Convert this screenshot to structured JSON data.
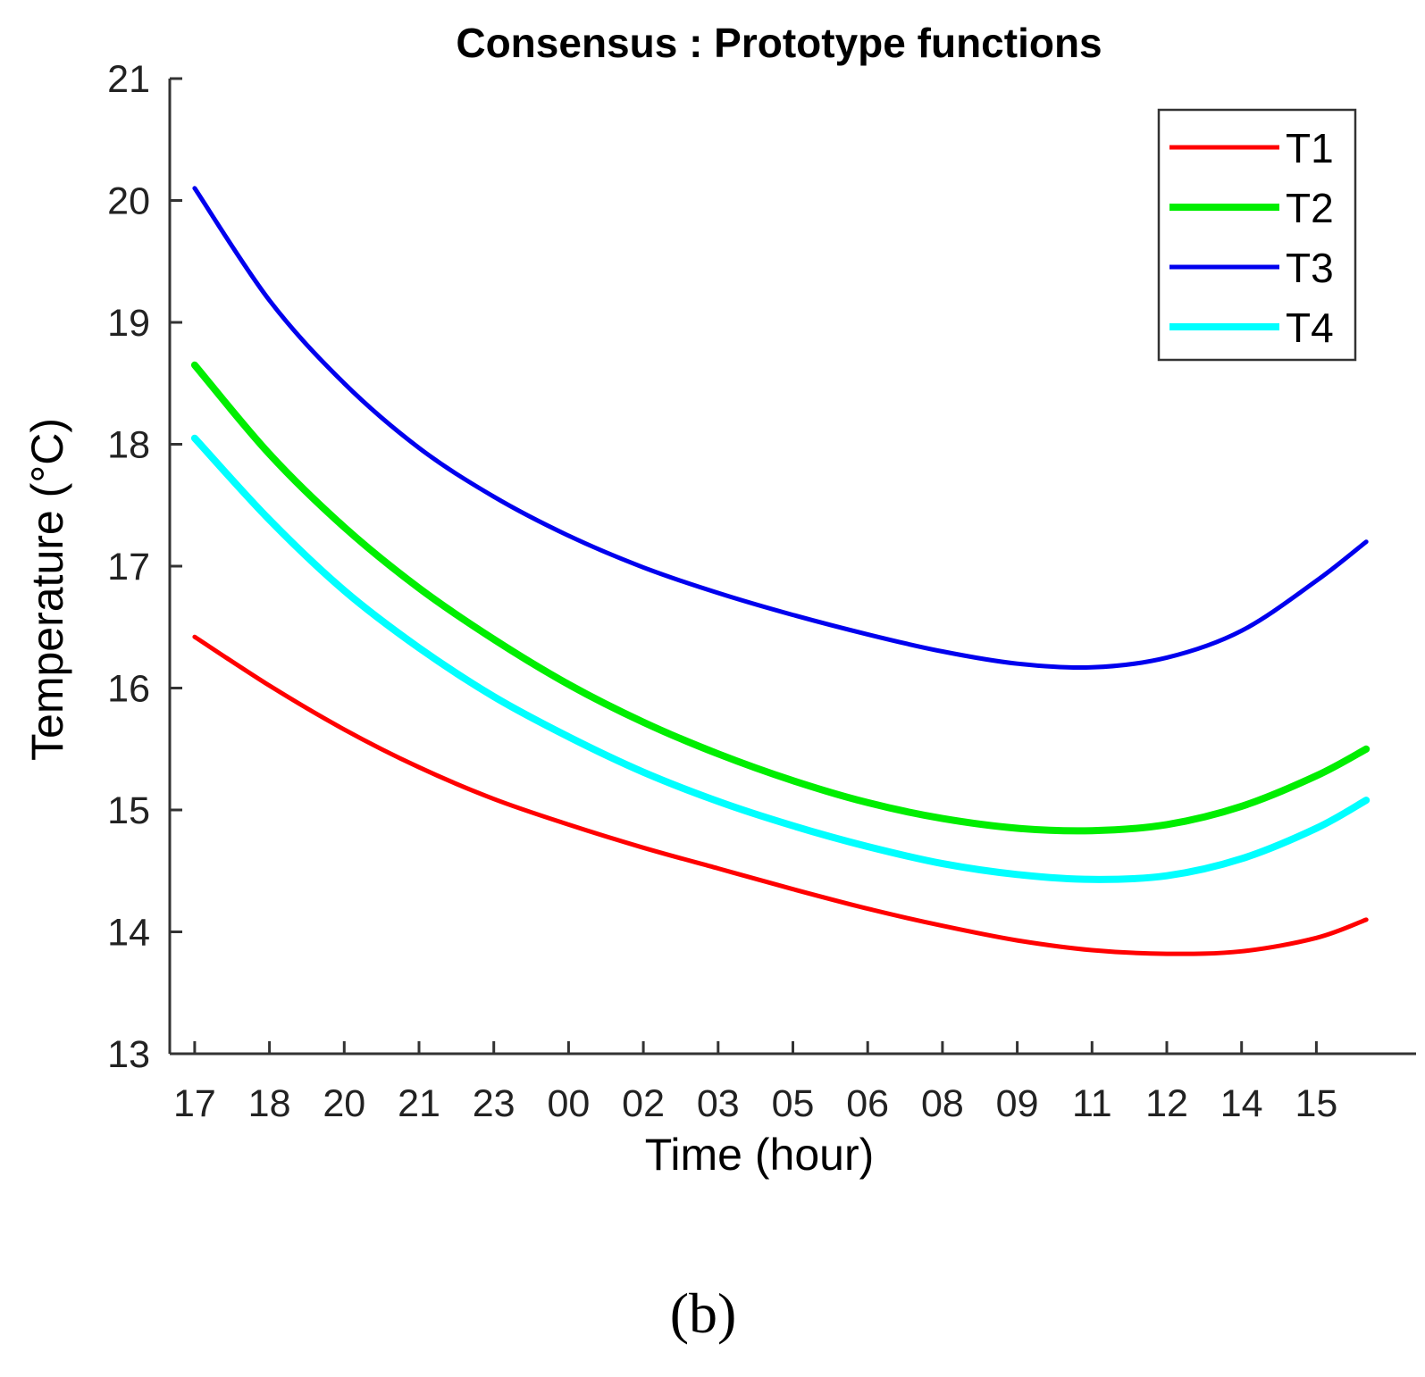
{
  "chart_data": {
    "type": "line",
    "title": "Consensus : Prototype functions",
    "xlabel": "Time (hour)",
    "ylabel": "Temperature (°C)",
    "caption": "(b)",
    "x_tick_labels": [
      "17",
      "18",
      "20",
      "21",
      "23",
      "00",
      "02",
      "03",
      "05",
      "06",
      "08",
      "09",
      "11",
      "12",
      "14",
      "15"
    ],
    "x": [
      0,
      1.5,
      3,
      4.5,
      6,
      7.5,
      9,
      10.5,
      12,
      13.5,
      15,
      16.5,
      18,
      19.5,
      21,
      22.5,
      23.5
    ],
    "xlim": [
      -0.5,
      24.5
    ],
    "ylim": [
      13,
      21
    ],
    "y_ticks": [
      13,
      14,
      15,
      16,
      17,
      18,
      19,
      20,
      21
    ],
    "legend_position": "top-right",
    "grid": false,
    "series": [
      {
        "name": "T1",
        "color": "#ff0000",
        "values": [
          16.42,
          16.02,
          15.66,
          15.35,
          15.09,
          14.88,
          14.69,
          14.52,
          14.35,
          14.19,
          14.05,
          13.93,
          13.85,
          13.82,
          13.84,
          13.95,
          14.1
        ]
      },
      {
        "name": "T2",
        "color": "#00ee00",
        "values": [
          18.65,
          17.92,
          17.32,
          16.82,
          16.4,
          16.03,
          15.72,
          15.46,
          15.24,
          15.06,
          14.93,
          14.85,
          14.83,
          14.88,
          15.03,
          15.28,
          15.5
        ]
      },
      {
        "name": "T3",
        "color": "#0000ee",
        "values": [
          20.1,
          19.18,
          18.5,
          17.97,
          17.57,
          17.25,
          16.99,
          16.78,
          16.6,
          16.44,
          16.3,
          16.2,
          16.17,
          16.25,
          16.47,
          16.88,
          17.2
        ]
      },
      {
        "name": "T4",
        "color": "#00ffff",
        "values": [
          18.05,
          17.38,
          16.8,
          16.33,
          15.93,
          15.6,
          15.31,
          15.07,
          14.87,
          14.7,
          14.56,
          14.47,
          14.43,
          14.46,
          14.6,
          14.85,
          15.08
        ]
      }
    ]
  }
}
